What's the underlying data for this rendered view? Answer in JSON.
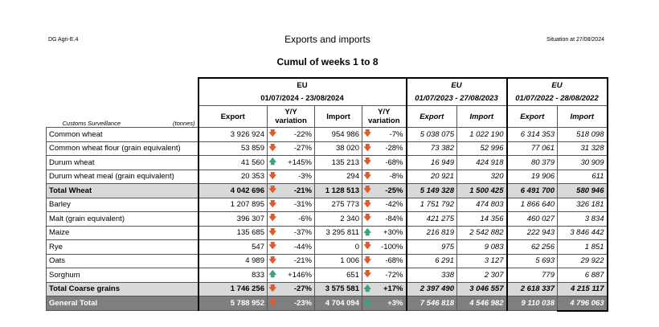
{
  "header": {
    "org": "DG Agri-E.4",
    "title": "Exports and imports",
    "situation": "Situation at 27/08/2024",
    "subtitle": "Cumul of weeks 1 to 8"
  },
  "table": {
    "source_label": "Customs Surveillance",
    "unit_label": "(tonnes)",
    "periods": [
      {
        "region": "EU",
        "dates": "01/07/2024 - 23/08/2024"
      },
      {
        "region": "EU",
        "dates": "01/07/2023 - 27/08/2023"
      },
      {
        "region": "EU",
        "dates": "01/07/2022 - 28/08/2022"
      }
    ],
    "col_export": "Export",
    "col_import": "Import",
    "col_variation": "Y/Y variation",
    "colors": {
      "down": "#e05a2b",
      "up": "#3aa37a",
      "total_bg": "#d9d9d9",
      "general_bg": "#7f7f7f"
    },
    "rows": [
      {
        "label": "Common wheat",
        "exp": "3 926 924",
        "exp_dir": "down",
        "exp_var": "-22%",
        "imp": "954 986",
        "imp_dir": "down",
        "imp_var": "-7%",
        "exp23": "5 038 075",
        "imp23": "1 022 190",
        "exp22": "6 314 353",
        "imp22": "518 098",
        "type": "normal"
      },
      {
        "label": "Common wheat flour (grain equivalent)",
        "exp": "53 859",
        "exp_dir": "down",
        "exp_var": "-27%",
        "imp": "38 020",
        "imp_dir": "down",
        "imp_var": "-28%",
        "exp23": "73 382",
        "imp23": "52 996",
        "exp22": "77 061",
        "imp22": "31 328",
        "type": "normal"
      },
      {
        "label": "Durum wheat",
        "exp": "41 560",
        "exp_dir": "up",
        "exp_var": "+145%",
        "imp": "135 213",
        "imp_dir": "down",
        "imp_var": "-68%",
        "exp23": "16 949",
        "imp23": "424 918",
        "exp22": "80 379",
        "imp22": "30 909",
        "type": "normal"
      },
      {
        "label": "Durum wheat meal (grain equivalent)",
        "exp": "20 353",
        "exp_dir": "down",
        "exp_var": "-3%",
        "imp": "294",
        "imp_dir": "down",
        "imp_var": "-8%",
        "exp23": "20 921",
        "imp23": "320",
        "exp22": "19 906",
        "imp22": "611",
        "type": "normal"
      },
      {
        "label": "Total Wheat",
        "exp": "4 042 696",
        "exp_dir": "down",
        "exp_var": "-21%",
        "imp": "1 128 513",
        "imp_dir": "down",
        "imp_var": "-25%",
        "exp23": "5 149 328",
        "imp23": "1 500 425",
        "exp22": "6 491 700",
        "imp22": "580 946",
        "type": "total"
      },
      {
        "label": "Barley",
        "exp": "1 207 895",
        "exp_dir": "down",
        "exp_var": "-31%",
        "imp": "275 773",
        "imp_dir": "down",
        "imp_var": "-42%",
        "exp23": "1 751 792",
        "imp23": "474 803",
        "exp22": "1 866 640",
        "imp22": "326 181",
        "type": "normal"
      },
      {
        "label": "Malt (grain equivalent)",
        "exp": "396 307",
        "exp_dir": "down",
        "exp_var": "-6%",
        "imp": "2 340",
        "imp_dir": "down",
        "imp_var": "-84%",
        "exp23": "421 275",
        "imp23": "14 356",
        "exp22": "460 027",
        "imp22": "3 834",
        "type": "normal"
      },
      {
        "label": "Maize",
        "exp": "135 685",
        "exp_dir": "down",
        "exp_var": "-37%",
        "imp": "3 295 811",
        "imp_dir": "up",
        "imp_var": "+30%",
        "exp23": "216 819",
        "imp23": "2 542 882",
        "exp22": "222 943",
        "imp22": "3 846 442",
        "type": "normal"
      },
      {
        "label": "Rye",
        "exp": "547",
        "exp_dir": "down",
        "exp_var": "-44%",
        "imp": "0",
        "imp_dir": "down",
        "imp_var": "-100%",
        "exp23": "975",
        "imp23": "9 083",
        "exp22": "62 256",
        "imp22": "1 851",
        "type": "normal"
      },
      {
        "label": "Oats",
        "exp": "4 989",
        "exp_dir": "down",
        "exp_var": "-21%",
        "imp": "1 006",
        "imp_dir": "down",
        "imp_var": "-68%",
        "exp23": "6 291",
        "imp23": "3 127",
        "exp22": "5 693",
        "imp22": "29 922",
        "type": "normal"
      },
      {
        "label": "Sorghum",
        "exp": "833",
        "exp_dir": "up",
        "exp_var": "+146%",
        "imp": "651",
        "imp_dir": "down",
        "imp_var": "-72%",
        "exp23": "338",
        "imp23": "2 307",
        "exp22": "779",
        "imp22": "6 887",
        "type": "normal"
      },
      {
        "label": "Total Coarse grains",
        "exp": "1 746 256",
        "exp_dir": "down",
        "exp_var": "-27%",
        "imp": "3 575 581",
        "imp_dir": "up",
        "imp_var": "+17%",
        "exp23": "2 397 490",
        "imp23": "3 046 557",
        "exp22": "2 618 337",
        "imp22": "4 215 117",
        "type": "total"
      },
      {
        "label": "General Total",
        "exp": "5 788 952",
        "exp_dir": "down",
        "exp_var": "-23%",
        "imp": "4 704 094",
        "imp_dir": "up",
        "imp_var": "+3%",
        "exp23": "7 546 818",
        "imp23": "4 546 982",
        "exp22": "9 110 038",
        "imp22": "4 796 063",
        "type": "general"
      }
    ]
  }
}
